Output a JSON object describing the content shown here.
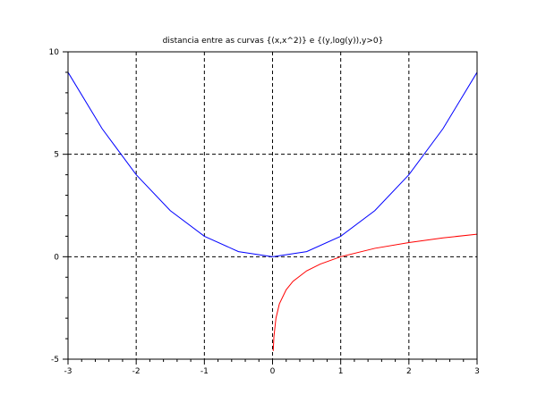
{
  "chart_data": {
    "type": "line",
    "title": "distancia entre as curvas {(x,x^2)} e {(y,log(y)),y>0}",
    "xlabel": "",
    "ylabel": "",
    "xlim": [
      -3,
      3
    ],
    "ylim": [
      -5,
      10
    ],
    "x_ticks": [
      -3,
      -2,
      -1,
      0,
      1,
      2,
      3
    ],
    "x_tick_labels": [
      "-3",
      "-2",
      "-1",
      "0",
      "1",
      "2",
      "3"
    ],
    "y_ticks": [
      -5,
      0,
      5,
      10
    ],
    "y_tick_labels": [
      "-5",
      "0",
      "5",
      "10"
    ],
    "grid": true,
    "grid_style": "dashed",
    "legend": "none",
    "series": [
      {
        "color": "#0000ff",
        "x": [
          -3,
          -2.5,
          -2,
          -1.5,
          -1,
          -0.5,
          0,
          0.5,
          1,
          1.5,
          2,
          2.5,
          3
        ],
        "y": [
          9,
          6.25,
          4,
          2.25,
          1,
          0.25,
          0,
          0.25,
          1,
          2.25,
          4,
          6.25,
          9
        ]
      },
      {
        "color": "#ff0000",
        "x": [
          0.01,
          0.02,
          0.05,
          0.1,
          0.2,
          0.3,
          0.5,
          0.7,
          1,
          1.5,
          2,
          2.5,
          3
        ],
        "y": [
          -4.6,
          -3.91,
          -3.0,
          -2.3,
          -1.61,
          -1.2,
          -0.69,
          -0.36,
          0,
          0.41,
          0.69,
          0.92,
          1.1
        ]
      }
    ]
  }
}
